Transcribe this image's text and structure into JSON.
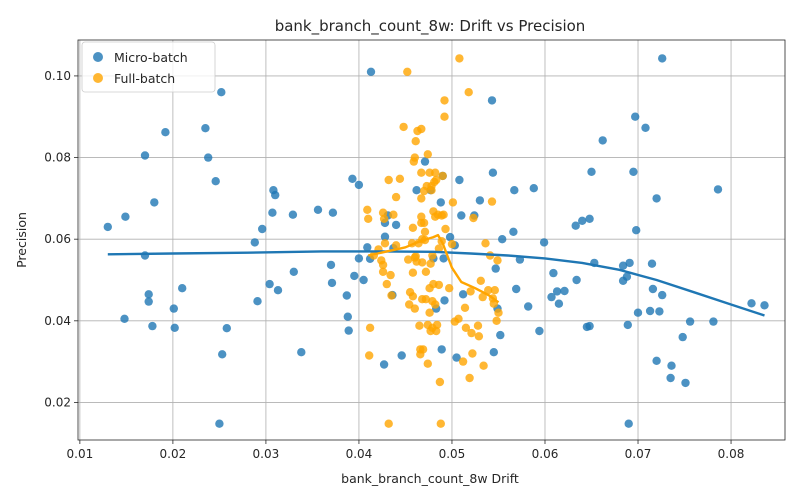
{
  "chart_data": {
    "type": "scatter",
    "title": "bank_branch_count_8w: Drift vs Precision",
    "xlabel": "bank_branch_count_8w Drift",
    "ylabel": "Precision",
    "xlim": [
      0.0098,
      0.0858
    ],
    "ylim": [
      0.0108,
      0.1088
    ],
    "xticks": [
      "0.01",
      "0.02",
      "0.03",
      "0.04",
      "0.05",
      "0.06",
      "0.07",
      "0.08"
    ],
    "yticks": [
      "0.02",
      "0.04",
      "0.06",
      "0.08",
      "0.10"
    ],
    "grid": true,
    "legend": "top-left",
    "series": [
      {
        "name": "Micro-batch",
        "color": "#1f77b4",
        "points": [
          [
            0.013,
            0.063
          ],
          [
            0.0148,
            0.0405
          ],
          [
            0.0149,
            0.0655
          ],
          [
            0.017,
            0.0805
          ],
          [
            0.017,
            0.056
          ],
          [
            0.0174,
            0.0465
          ],
          [
            0.0174,
            0.0447
          ],
          [
            0.0178,
            0.0387
          ],
          [
            0.018,
            0.069
          ],
          [
            0.0192,
            0.0862
          ],
          [
            0.0201,
            0.043
          ],
          [
            0.0202,
            0.0383
          ],
          [
            0.021,
            0.048
          ],
          [
            0.0235,
            0.0872
          ],
          [
            0.0238,
            0.08
          ],
          [
            0.0246,
            0.0742
          ],
          [
            0.025,
            0.0148
          ],
          [
            0.0252,
            0.096
          ],
          [
            0.0253,
            0.0318
          ],
          [
            0.0258,
            0.0382
          ],
          [
            0.0288,
            0.0592
          ],
          [
            0.0291,
            0.0448
          ],
          [
            0.0296,
            0.0625
          ],
          [
            0.0304,
            0.049
          ],
          [
            0.0308,
            0.072
          ],
          [
            0.0307,
            0.0665
          ],
          [
            0.031,
            0.0708
          ],
          [
            0.0313,
            0.0475
          ],
          [
            0.0329,
            0.066
          ],
          [
            0.033,
            0.052
          ],
          [
            0.0338,
            0.0323
          ],
          [
            0.0356,
            0.0672
          ],
          [
            0.037,
            0.0537
          ],
          [
            0.0371,
            0.0493
          ],
          [
            0.0372,
            0.0665
          ],
          [
            0.0387,
            0.0462
          ],
          [
            0.0388,
            0.041
          ],
          [
            0.0389,
            0.0376
          ],
          [
            0.0393,
            0.0748
          ],
          [
            0.0395,
            0.051
          ],
          [
            0.04,
            0.0733
          ],
          [
            0.04,
            0.0553
          ],
          [
            0.0405,
            0.05
          ],
          [
            0.0409,
            0.058
          ],
          [
            0.0412,
            0.0552
          ],
          [
            0.0413,
            0.101
          ],
          [
            0.0427,
            0.0293
          ],
          [
            0.0428,
            0.064
          ],
          [
            0.0428,
            0.0606
          ],
          [
            0.0431,
            0.0658
          ],
          [
            0.0436,
            0.0463
          ],
          [
            0.0437,
            0.0578
          ],
          [
            0.044,
            0.0635
          ],
          [
            0.0446,
            0.0315
          ],
          [
            0.0462,
            0.072
          ],
          [
            0.0471,
            0.079
          ],
          [
            0.0477,
            0.072
          ],
          [
            0.048,
            0.0553
          ],
          [
            0.0483,
            0.043
          ],
          [
            0.0488,
            0.069
          ],
          [
            0.0489,
            0.033
          ],
          [
            0.049,
            0.0755
          ],
          [
            0.0491,
            0.0553
          ],
          [
            0.0492,
            0.045
          ],
          [
            0.0498,
            0.0605
          ],
          [
            0.0503,
            0.0585
          ],
          [
            0.0505,
            0.031
          ],
          [
            0.0508,
            0.0745
          ],
          [
            0.051,
            0.0658
          ],
          [
            0.0512,
            0.0465
          ],
          [
            0.0524,
            0.0658
          ],
          [
            0.053,
            0.0695
          ],
          [
            0.0543,
            0.094
          ],
          [
            0.0544,
            0.0763
          ],
          [
            0.0545,
            0.0323
          ],
          [
            0.0547,
            0.0528
          ],
          [
            0.0549,
            0.043
          ],
          [
            0.0552,
            0.0365
          ],
          [
            0.0554,
            0.06
          ],
          [
            0.0566,
            0.0618
          ],
          [
            0.0567,
            0.072
          ],
          [
            0.0569,
            0.0478
          ],
          [
            0.0573,
            0.055
          ],
          [
            0.0582,
            0.0435
          ],
          [
            0.0588,
            0.0725
          ],
          [
            0.0594,
            0.0375
          ],
          [
            0.0599,
            0.0592
          ],
          [
            0.0607,
            0.0458
          ],
          [
            0.0609,
            0.0517
          ],
          [
            0.0613,
            0.0472
          ],
          [
            0.0615,
            0.0442
          ],
          [
            0.0621,
            0.0473
          ],
          [
            0.0633,
            0.0633
          ],
          [
            0.0634,
            0.05
          ],
          [
            0.064,
            0.0645
          ],
          [
            0.0645,
            0.0385
          ],
          [
            0.0648,
            0.0387
          ],
          [
            0.0648,
            0.065
          ],
          [
            0.065,
            0.0765
          ],
          [
            0.0653,
            0.0542
          ],
          [
            0.0662,
            0.0842
          ],
          [
            0.0684,
            0.0498
          ],
          [
            0.0684,
            0.0535
          ],
          [
            0.0688,
            0.0508
          ],
          [
            0.0689,
            0.039
          ],
          [
            0.069,
            0.0148
          ],
          [
            0.0691,
            0.0542
          ],
          [
            0.0695,
            0.0765
          ],
          [
            0.0697,
            0.09
          ],
          [
            0.0698,
            0.0622
          ],
          [
            0.07,
            0.042
          ],
          [
            0.0708,
            0.0873
          ],
          [
            0.0713,
            0.0424
          ],
          [
            0.0715,
            0.054
          ],
          [
            0.0716,
            0.0478
          ],
          [
            0.072,
            0.07
          ],
          [
            0.072,
            0.0302
          ],
          [
            0.0723,
            0.0423
          ],
          [
            0.0726,
            0.1043
          ],
          [
            0.0726,
            0.0463
          ],
          [
            0.0735,
            0.026
          ],
          [
            0.0736,
            0.029
          ],
          [
            0.0748,
            0.036
          ],
          [
            0.0751,
            0.0248
          ],
          [
            0.0756,
            0.0398
          ],
          [
            0.0781,
            0.0398
          ],
          [
            0.0786,
            0.0722
          ],
          [
            0.0822,
            0.0443
          ],
          [
            0.0836,
            0.0438
          ]
        ]
      },
      {
        "name": "Full-batch",
        "color": "#ffa500",
        "points": [
          [
            0.0409,
            0.0672
          ],
          [
            0.041,
            0.065
          ],
          [
            0.0411,
            0.0315
          ],
          [
            0.0412,
            0.0383
          ],
          [
            0.0416,
            0.056
          ],
          [
            0.0421,
            0.0575
          ],
          [
            0.0424,
            0.0548
          ],
          [
            0.0426,
            0.0665
          ],
          [
            0.0426,
            0.0537
          ],
          [
            0.0426,
            0.052
          ],
          [
            0.0427,
            0.065
          ],
          [
            0.0428,
            0.059
          ],
          [
            0.043,
            0.049
          ],
          [
            0.0432,
            0.0148
          ],
          [
            0.0432,
            0.0745
          ],
          [
            0.0434,
            0.0512
          ],
          [
            0.0435,
            0.0462
          ],
          [
            0.0437,
            0.066
          ],
          [
            0.044,
            0.0703
          ],
          [
            0.044,
            0.0585
          ],
          [
            0.0444,
            0.0748
          ],
          [
            0.0448,
            0.0875
          ],
          [
            0.0452,
            0.101
          ],
          [
            0.0453,
            0.055
          ],
          [
            0.0454,
            0.044
          ],
          [
            0.0455,
            0.047
          ],
          [
            0.0457,
            0.059
          ],
          [
            0.0458,
            0.0628
          ],
          [
            0.0458,
            0.0518
          ],
          [
            0.0458,
            0.046
          ],
          [
            0.0459,
            0.079
          ],
          [
            0.046,
            0.08
          ],
          [
            0.046,
            0.0555
          ],
          [
            0.046,
            0.043
          ],
          [
            0.0461,
            0.084
          ],
          [
            0.0461,
            0.0558
          ],
          [
            0.0462,
            0.0545
          ],
          [
            0.0463,
            0.0865
          ],
          [
            0.0464,
            0.059
          ],
          [
            0.0465,
            0.0388
          ],
          [
            0.0466,
            0.033
          ],
          [
            0.0466,
            0.0318
          ],
          [
            0.0467,
            0.087
          ],
          [
            0.0467,
            0.0763
          ],
          [
            0.0467,
            0.07
          ],
          [
            0.0467,
            0.0655
          ],
          [
            0.0467,
            0.064
          ],
          [
            0.0468,
            0.06
          ],
          [
            0.0468,
            0.0543
          ],
          [
            0.0468,
            0.0453
          ],
          [
            0.0469,
            0.033
          ],
          [
            0.047,
            0.0718
          ],
          [
            0.047,
            0.064
          ],
          [
            0.0471,
            0.0618
          ],
          [
            0.0471,
            0.0598
          ],
          [
            0.0472,
            0.052
          ],
          [
            0.0472,
            0.0453
          ],
          [
            0.0473,
            0.073
          ],
          [
            0.0474,
            0.0808
          ],
          [
            0.0474,
            0.039
          ],
          [
            0.0474,
            0.0295
          ],
          [
            0.0476,
            0.0763
          ],
          [
            0.0476,
            0.048
          ],
          [
            0.0476,
            0.042
          ],
          [
            0.0477,
            0.054
          ],
          [
            0.0477,
            0.0375
          ],
          [
            0.0478,
            0.073
          ],
          [
            0.0478,
            0.072
          ],
          [
            0.0479,
            0.056
          ],
          [
            0.0479,
            0.0448
          ],
          [
            0.0479,
            0.0383
          ],
          [
            0.048,
            0.0668
          ],
          [
            0.048,
            0.049
          ],
          [
            0.0481,
            0.074
          ],
          [
            0.0482,
            0.0763
          ],
          [
            0.0482,
            0.0655
          ],
          [
            0.0482,
            0.044
          ],
          [
            0.0483,
            0.0745
          ],
          [
            0.0483,
            0.0375
          ],
          [
            0.0484,
            0.039
          ],
          [
            0.0485,
            0.066
          ],
          [
            0.0486,
            0.0577
          ],
          [
            0.0486,
            0.0488
          ],
          [
            0.0487,
            0.025
          ],
          [
            0.0488,
            0.0148
          ],
          [
            0.0489,
            0.0658
          ],
          [
            0.0489,
            0.0595
          ],
          [
            0.049,
            0.0755
          ],
          [
            0.0491,
            0.066
          ],
          [
            0.0492,
            0.09
          ],
          [
            0.0492,
            0.094
          ],
          [
            0.0493,
            0.0625
          ],
          [
            0.0497,
            0.048
          ],
          [
            0.05,
            0.0588
          ],
          [
            0.0501,
            0.069
          ],
          [
            0.0503,
            0.0398
          ],
          [
            0.0507,
            0.0405
          ],
          [
            0.0508,
            0.1043
          ],
          [
            0.0512,
            0.03
          ],
          [
            0.0514,
            0.0432
          ],
          [
            0.0515,
            0.0383
          ],
          [
            0.0518,
            0.096
          ],
          [
            0.0519,
            0.026
          ],
          [
            0.052,
            0.0472
          ],
          [
            0.0521,
            0.037
          ],
          [
            0.0522,
            0.032
          ],
          [
            0.0523,
            0.0652
          ],
          [
            0.0528,
            0.0388
          ],
          [
            0.0529,
            0.0362
          ],
          [
            0.0531,
            0.0498
          ],
          [
            0.0533,
            0.0458
          ],
          [
            0.0534,
            0.029
          ],
          [
            0.0536,
            0.059
          ],
          [
            0.0539,
            0.0475
          ],
          [
            0.0541,
            0.056
          ],
          [
            0.0543,
            0.0692
          ],
          [
            0.0544,
            0.0455
          ],
          [
            0.0545,
            0.0442
          ],
          [
            0.0546,
            0.0475
          ],
          [
            0.0548,
            0.04
          ],
          [
            0.0549,
            0.0548
          ],
          [
            0.055,
            0.042
          ]
        ]
      }
    ],
    "trend_lines": [
      {
        "series": "Micro-batch",
        "color": "#1f77b4",
        "points": [
          [
            0.013,
            0.0563
          ],
          [
            0.02,
            0.0565
          ],
          [
            0.028,
            0.0567
          ],
          [
            0.036,
            0.057
          ],
          [
            0.042,
            0.057
          ],
          [
            0.048,
            0.0569
          ],
          [
            0.052,
            0.0565
          ],
          [
            0.056,
            0.056
          ],
          [
            0.06,
            0.0553
          ],
          [
            0.064,
            0.0542
          ],
          [
            0.068,
            0.0525
          ],
          [
            0.072,
            0.05
          ],
          [
            0.076,
            0.047
          ],
          [
            0.08,
            0.044
          ],
          [
            0.0836,
            0.0413
          ]
        ]
      },
      {
        "series": "Full-batch",
        "color": "#ffa500",
        "points": [
          [
            0.041,
            0.056
          ],
          [
            0.042,
            0.0565
          ],
          [
            0.043,
            0.057
          ],
          [
            0.044,
            0.0575
          ],
          [
            0.045,
            0.058
          ],
          [
            0.046,
            0.059
          ],
          [
            0.047,
            0.0598
          ],
          [
            0.048,
            0.0605
          ],
          [
            0.0485,
            0.061
          ],
          [
            0.049,
            0.059
          ],
          [
            0.0495,
            0.056
          ],
          [
            0.05,
            0.053
          ],
          [
            0.051,
            0.0495
          ],
          [
            0.0525,
            0.048
          ],
          [
            0.054,
            0.0462
          ],
          [
            0.055,
            0.0445
          ]
        ]
      }
    ]
  }
}
